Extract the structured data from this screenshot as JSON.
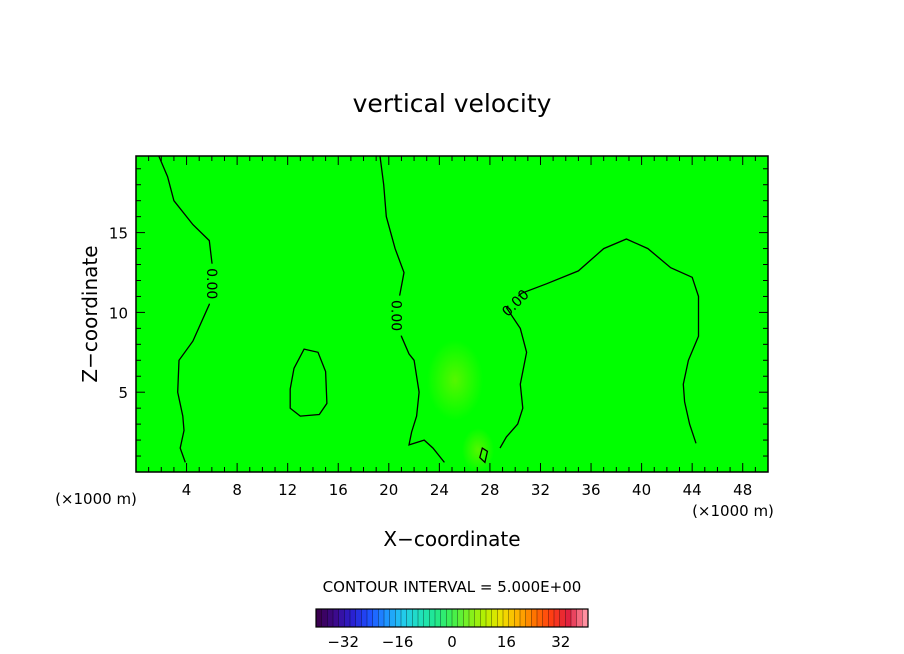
{
  "chart_data": {
    "type": "heatmap",
    "title": "vertical velocity",
    "xlabel": "X−coordinate",
    "ylabel": "Z−coordinate",
    "xunit": "(×1000 m)",
    "yunit": "(×1000 m)",
    "xlim": [
      0,
      50
    ],
    "ylim": [
      0,
      19.8
    ],
    "x_ticks": [
      "4",
      "8",
      "12",
      "16",
      "20",
      "24",
      "28",
      "32",
      "36",
      "40",
      "44",
      "48"
    ],
    "y_ticks": [
      "5",
      "10",
      "15"
    ],
    "contour_label": "0.00",
    "contour_interval_text": "CONTOUR INTERVAL = 5.000E+00",
    "colorbar": {
      "min": -40,
      "max": 40,
      "ticks": [
        "−32",
        "−16",
        "0",
        "16",
        "32"
      ],
      "colors": [
        "#3a0050",
        "#3c0a8c",
        "#2a1fd0",
        "#1e4fff",
        "#1e90ff",
        "#22c8f0",
        "#20e0c0",
        "#20e890",
        "#3ef050",
        "#7cf020",
        "#b8f000",
        "#f0e000",
        "#ffb000",
        "#ff7000",
        "#ff3c14",
        "#e02040",
        "#ff90a0"
      ]
    },
    "contours": {
      "level": 0.0,
      "lines": [
        [
          [
            1.8,
            19.8
          ],
          [
            2.5,
            18.5
          ],
          [
            3,
            17
          ],
          [
            4.5,
            15.5
          ],
          [
            5.8,
            14.5
          ],
          [
            6.1,
            12.5
          ],
          [
            5.8,
            10.5
          ],
          [
            4.5,
            8.2
          ],
          [
            3.4,
            7
          ],
          [
            3.3,
            5
          ],
          [
            3.7,
            3.5
          ],
          [
            3.8,
            2.6
          ],
          [
            3.5,
            1.5
          ],
          [
            3.9,
            0.6
          ]
        ],
        [
          [
            19.3,
            19.8
          ],
          [
            19.6,
            18
          ],
          [
            19.8,
            16
          ],
          [
            20.5,
            14
          ],
          [
            21.2,
            12.5
          ],
          [
            20.8,
            10.8
          ],
          [
            21,
            8.5
          ],
          [
            21.6,
            7.4
          ],
          [
            22,
            7
          ],
          [
            22.4,
            5
          ],
          [
            22.2,
            3.5
          ],
          [
            21.8,
            2.5
          ],
          [
            21.6,
            1.7
          ],
          [
            22.8,
            2
          ],
          [
            23.5,
            1.5
          ],
          [
            24.4,
            0.6
          ]
        ],
        [
          [
            29.3,
            10.3
          ],
          [
            30.5,
            11.2
          ],
          [
            32.5,
            11.8
          ],
          [
            35,
            12.6
          ],
          [
            37,
            14
          ],
          [
            38.8,
            14.6
          ],
          [
            40.5,
            14
          ],
          [
            42.3,
            12.8
          ],
          [
            44,
            12.2
          ],
          [
            44.5,
            11
          ],
          [
            44.5,
            8.5
          ],
          [
            43.7,
            7
          ],
          [
            43.3,
            5.5
          ],
          [
            43.4,
            4.4
          ],
          [
            43.8,
            3
          ],
          [
            44.3,
            1.8
          ]
        ],
        [
          [
            29.3,
            10.3
          ],
          [
            30.4,
            9
          ],
          [
            30.9,
            7.5
          ],
          [
            30.4,
            5.5
          ],
          [
            30.6,
            4
          ],
          [
            30.2,
            3
          ],
          [
            29.3,
            2.2
          ],
          [
            28.8,
            1.5
          ]
        ]
      ],
      "closed": [
        [
          [
            12.5,
            6.5
          ],
          [
            13.3,
            7.7
          ],
          [
            14.4,
            7.5
          ],
          [
            15,
            6.3
          ],
          [
            15.1,
            4.3
          ],
          [
            14.5,
            3.6
          ],
          [
            13,
            3.5
          ],
          [
            12.2,
            4
          ],
          [
            12.2,
            5.2
          ]
        ],
        [
          [
            27.4,
            1.5
          ],
          [
            27.8,
            1.3
          ],
          [
            27.6,
            0.6
          ],
          [
            27.2,
            0.9
          ]
        ]
      ],
      "label_positions": [
        [
          6,
          11.8
        ],
        [
          20.6,
          9.8
        ],
        [
          30,
          10.6
        ]
      ]
    }
  }
}
